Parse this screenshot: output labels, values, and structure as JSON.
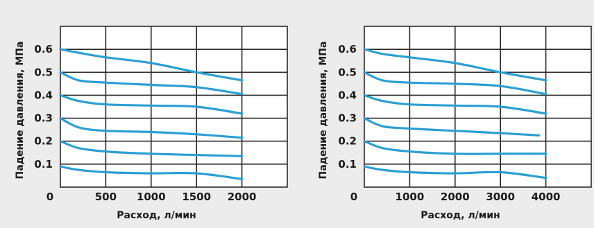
{
  "chart_data": [
    {
      "type": "line",
      "ylabel": "Падение давления, МПа",
      "xlabel": "Расход, л/мин",
      "xlim": [
        0,
        2500
      ],
      "ylim": [
        0,
        0.7
      ],
      "x_ticks": [
        500,
        1000,
        1500,
        2000
      ],
      "x_tick_labels": [
        "500",
        "1000",
        "1500",
        "2000"
      ],
      "y_ticks": [
        0.1,
        0.2,
        0.3,
        0.4,
        0.5,
        0.6
      ],
      "y_tick_labels": [
        "0.1",
        "0.2",
        "0.3",
        "0.4",
        "0.5",
        "0.6"
      ],
      "origin_label": "0",
      "grid": true,
      "line_color": "#2b9fd4",
      "series": [
        {
          "x": [
            0,
            200,
            500,
            1000,
            1500,
            2000
          ],
          "y": [
            0.6,
            0.585,
            0.565,
            0.54,
            0.5,
            0.465
          ]
        },
        {
          "x": [
            0,
            200,
            500,
            1000,
            1500,
            2000
          ],
          "y": [
            0.5,
            0.465,
            0.455,
            0.445,
            0.435,
            0.405
          ]
        },
        {
          "x": [
            0,
            200,
            500,
            1000,
            1500,
            2000
          ],
          "y": [
            0.4,
            0.375,
            0.36,
            0.355,
            0.35,
            0.32
          ]
        },
        {
          "x": [
            0,
            200,
            500,
            1000,
            1500,
            2000
          ],
          "y": [
            0.3,
            0.26,
            0.245,
            0.24,
            0.23,
            0.215
          ]
        },
        {
          "x": [
            0,
            200,
            500,
            1000,
            1500,
            2000
          ],
          "y": [
            0.2,
            0.17,
            0.155,
            0.145,
            0.14,
            0.135
          ]
        },
        {
          "x": [
            0,
            200,
            500,
            1000,
            1500,
            2000
          ],
          "y": [
            0.09,
            0.075,
            0.065,
            0.06,
            0.06,
            0.035
          ]
        }
      ]
    },
    {
      "type": "line",
      "ylabel": "Падение давления, МПа",
      "xlabel": "Расход, л/мин",
      "xlim": [
        0,
        5000
      ],
      "ylim": [
        0,
        0.7
      ],
      "x_ticks": [
        1000,
        2000,
        3000,
        4000
      ],
      "x_tick_labels": [
        "1000",
        "2000",
        "3000",
        "4000"
      ],
      "y_ticks": [
        0.1,
        0.2,
        0.3,
        0.4,
        0.5,
        0.6
      ],
      "y_tick_labels": [
        "0.1",
        "0.2",
        "0.3",
        "0.4",
        "0.5",
        "0.6"
      ],
      "origin_label": "0",
      "grid": true,
      "line_color": "#2b9fd4",
      "series": [
        {
          "x": [
            0,
            400,
            1000,
            2000,
            3000,
            4000
          ],
          "y": [
            0.6,
            0.58,
            0.565,
            0.54,
            0.5,
            0.465
          ]
        },
        {
          "x": [
            0,
            400,
            1000,
            2000,
            3000,
            4000
          ],
          "y": [
            0.5,
            0.465,
            0.455,
            0.45,
            0.44,
            0.405
          ]
        },
        {
          "x": [
            0,
            400,
            1000,
            2000,
            3000,
            4000
          ],
          "y": [
            0.4,
            0.375,
            0.36,
            0.355,
            0.35,
            0.32
          ]
        },
        {
          "x": [
            0,
            400,
            1000,
            2000,
            3000,
            3850
          ],
          "y": [
            0.3,
            0.265,
            0.255,
            0.245,
            0.235,
            0.225
          ]
        },
        {
          "x": [
            0,
            400,
            1000,
            2000,
            3000,
            4000
          ],
          "y": [
            0.2,
            0.17,
            0.155,
            0.145,
            0.145,
            0.145
          ]
        },
        {
          "x": [
            0,
            400,
            1000,
            2000,
            3000,
            4000
          ],
          "y": [
            0.09,
            0.075,
            0.065,
            0.06,
            0.065,
            0.04
          ]
        }
      ]
    }
  ]
}
